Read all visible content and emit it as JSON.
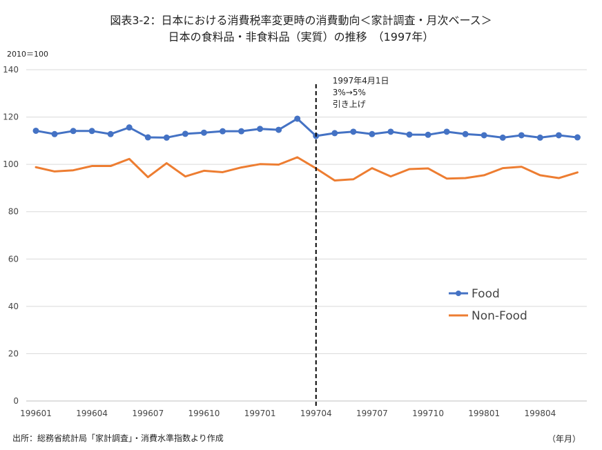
{
  "title_line1": "図表3-2：日本における消費税率変更時の消費動向＜家計調査・月次ベース＞",
  "title_line2": "日本の食料品・非食料品（実質）の推移　（1997年）",
  "y_unit_label": "2010＝100",
  "source_note": "出所：総務省統計局「家計調査」・消費水準指数より作成",
  "x_unit_note": "（年月）",
  "colors": {
    "food": "#4472C4",
    "nonfood": "#ED7D31",
    "grid": "#d9d9d9",
    "axis": "#bfbfbf",
    "marker_line": "#000000"
  },
  "chart_data": {
    "type": "line",
    "x": [
      "199601",
      "199602",
      "199603",
      "199604",
      "199605",
      "199606",
      "199607",
      "199608",
      "199609",
      "199610",
      "199611",
      "199612",
      "199701",
      "199702",
      "199703",
      "199704",
      "199705",
      "199706",
      "199707",
      "199708",
      "199709",
      "199710",
      "199711",
      "199712",
      "199801",
      "199802",
      "199803",
      "199804",
      "199805",
      "199806"
    ],
    "x_tick_labels": [
      "199601",
      "199604",
      "199607",
      "199610",
      "199701",
      "199704",
      "199707",
      "199710",
      "199801",
      "199804"
    ],
    "x_tick_indices": [
      0,
      3,
      6,
      9,
      12,
      15,
      18,
      21,
      24,
      27
    ],
    "ylim": [
      0,
      140
    ],
    "y_ticks": [
      0,
      20,
      40,
      60,
      80,
      100,
      120,
      140
    ],
    "grid": true,
    "legend_position": "right",
    "series": [
      {
        "name": "Food",
        "color_key": "food",
        "marker": "circle",
        "values": [
          114.2,
          112.8,
          114.1,
          114.1,
          112.8,
          115.6,
          111.4,
          111.3,
          112.9,
          113.4,
          114.0,
          114.0,
          115.0,
          114.6,
          119.3,
          112.0,
          113.2,
          113.8,
          112.8,
          113.8,
          112.6,
          112.5,
          113.8,
          112.8,
          112.3,
          111.3,
          112.3,
          111.3,
          112.3,
          111.4
        ]
      },
      {
        "name": "Non-Food",
        "color_key": "nonfood",
        "marker": "none",
        "values": [
          98.8,
          97.0,
          97.5,
          99.3,
          99.3,
          102.3,
          94.6,
          100.5,
          94.9,
          97.3,
          96.7,
          98.7,
          100.1,
          99.9,
          103.0,
          98.3,
          93.2,
          93.7,
          98.4,
          94.9,
          98.0,
          98.3,
          94.0,
          94.2,
          95.4,
          98.4,
          99.0,
          95.4,
          94.2,
          96.6
        ]
      }
    ],
    "annotation": {
      "x_index": 15,
      "line1": "1997年4月1日",
      "line2": "3%→5%",
      "line3": "引き上げ"
    }
  }
}
